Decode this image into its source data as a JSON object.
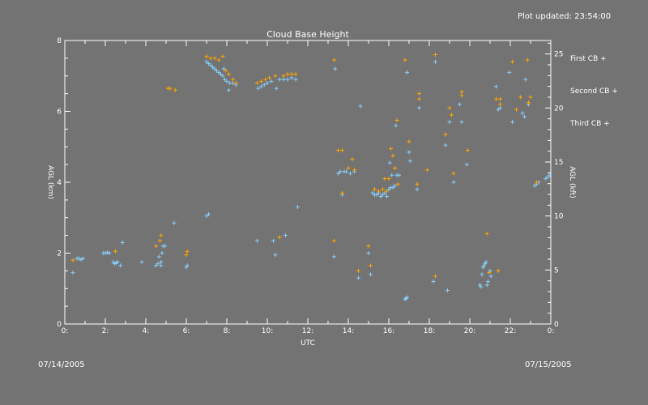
{
  "header": {
    "plot_updated": "Plot updated: 23:54:00"
  },
  "footer": {
    "date_left": "07/14/2005",
    "date_right": "07/15/2005"
  },
  "chart_data": {
    "type": "scatter",
    "title": "Cloud Base Height",
    "xlabel": "UTC",
    "ylabel": "AGL (km)",
    "ylabel_right": "AGL (kft)",
    "xlim": [
      0,
      24
    ],
    "ylim": [
      0,
      8
    ],
    "ylim_right": [
      0,
      26.25
    ],
    "x_ticks": [
      "0:",
      "2:",
      "4:",
      "6:",
      "8:",
      "10:",
      "12:",
      "14:",
      "16:",
      "18:",
      "20:",
      "22:",
      "0:"
    ],
    "y_ticks": [
      "0",
      "2",
      "4",
      "6",
      "8"
    ],
    "y_ticks_right": [
      "0",
      "5",
      "10",
      "15",
      "20",
      "25"
    ],
    "legend_placement": "right",
    "grid": false,
    "series": [
      {
        "name": "First CB +",
        "color": "#87cefa",
        "points": [
          [
            0.4,
            1.45
          ],
          [
            0.6,
            1.85
          ],
          [
            0.7,
            1.85
          ],
          [
            0.8,
            1.82
          ],
          [
            0.9,
            1.85
          ],
          [
            1.9,
            2.0
          ],
          [
            2.0,
            2.0
          ],
          [
            2.1,
            2.02
          ],
          [
            2.2,
            2.0
          ],
          [
            2.4,
            1.75
          ],
          [
            2.45,
            1.7
          ],
          [
            2.55,
            1.72
          ],
          [
            2.6,
            1.75
          ],
          [
            2.75,
            1.65
          ],
          [
            2.85,
            2.3
          ],
          [
            3.8,
            1.75
          ],
          [
            4.5,
            1.65
          ],
          [
            4.6,
            1.7
          ],
          [
            4.65,
            1.9
          ],
          [
            4.75,
            1.75
          ],
          [
            4.8,
            2.0
          ],
          [
            4.85,
            2.2
          ],
          [
            4.95,
            2.2
          ],
          [
            4.75,
            1.65
          ],
          [
            5.4,
            2.85
          ],
          [
            6.0,
            1.6
          ],
          [
            6.05,
            1.65
          ],
          [
            7.0,
            3.05
          ],
          [
            7.1,
            3.1
          ],
          [
            7.0,
            7.4
          ],
          [
            7.1,
            7.35
          ],
          [
            7.2,
            7.3
          ],
          [
            7.3,
            7.25
          ],
          [
            7.4,
            7.2
          ],
          [
            7.5,
            7.15
          ],
          [
            7.6,
            7.1
          ],
          [
            7.7,
            7.05
          ],
          [
            7.8,
            7.0
          ],
          [
            7.85,
            7.2
          ],
          [
            7.9,
            6.9
          ],
          [
            8.0,
            6.85
          ],
          [
            8.1,
            6.6
          ],
          [
            8.15,
            6.8
          ],
          [
            8.3,
            6.8
          ],
          [
            8.45,
            6.75
          ],
          [
            9.5,
            2.35
          ],
          [
            9.55,
            6.65
          ],
          [
            9.7,
            6.7
          ],
          [
            9.85,
            6.75
          ],
          [
            10.0,
            6.8
          ],
          [
            10.2,
            6.85
          ],
          [
            10.3,
            2.35
          ],
          [
            10.4,
            1.95
          ],
          [
            10.45,
            6.65
          ],
          [
            10.6,
            6.9
          ],
          [
            10.8,
            6.9
          ],
          [
            10.9,
            2.5
          ],
          [
            11.0,
            6.9
          ],
          [
            11.2,
            6.95
          ],
          [
            11.4,
            6.9
          ],
          [
            11.5,
            3.3
          ],
          [
            13.3,
            1.9
          ],
          [
            13.35,
            7.2
          ],
          [
            13.5,
            4.25
          ],
          [
            13.6,
            4.3
          ],
          [
            13.7,
            3.65
          ],
          [
            13.8,
            4.3
          ],
          [
            13.9,
            4.3
          ],
          [
            14.1,
            4.25
          ],
          [
            14.3,
            4.3
          ],
          [
            14.5,
            1.3
          ],
          [
            14.6,
            6.15
          ],
          [
            15.0,
            2.0
          ],
          [
            15.1,
            1.4
          ],
          [
            15.2,
            3.7
          ],
          [
            15.3,
            3.65
          ],
          [
            15.4,
            3.65
          ],
          [
            15.5,
            3.7
          ],
          [
            15.6,
            3.6
          ],
          [
            15.7,
            3.65
          ],
          [
            15.8,
            3.7
          ],
          [
            15.9,
            3.6
          ],
          [
            16.0,
            3.8
          ],
          [
            16.1,
            3.85
          ],
          [
            16.2,
            3.85
          ],
          [
            16.3,
            3.9
          ],
          [
            16.05,
            4.55
          ],
          [
            16.15,
            4.2
          ],
          [
            16.4,
            4.2
          ],
          [
            16.5,
            4.2
          ],
          [
            16.35,
            5.6
          ],
          [
            16.8,
            0.7
          ],
          [
            16.85,
            0.72
          ],
          [
            16.9,
            0.75
          ],
          [
            17.0,
            4.85
          ],
          [
            17.05,
            4.6
          ],
          [
            16.9,
            7.1
          ],
          [
            17.4,
            3.8
          ],
          [
            17.5,
            6.1
          ],
          [
            18.2,
            1.2
          ],
          [
            18.3,
            7.4
          ],
          [
            18.8,
            5.05
          ],
          [
            18.9,
            0.95
          ],
          [
            19.0,
            5.7
          ],
          [
            19.2,
            4.0
          ],
          [
            19.5,
            6.2
          ],
          [
            19.6,
            5.7
          ],
          [
            19.85,
            4.5
          ],
          [
            20.5,
            1.1
          ],
          [
            20.55,
            1.05
          ],
          [
            20.6,
            1.4
          ],
          [
            20.65,
            1.6
          ],
          [
            20.7,
            1.65
          ],
          [
            20.75,
            1.7
          ],
          [
            20.8,
            1.75
          ],
          [
            20.85,
            1.1
          ],
          [
            20.9,
            1.2
          ],
          [
            21.0,
            1.5
          ],
          [
            21.05,
            1.35
          ],
          [
            21.3,
            6.7
          ],
          [
            21.4,
            6.05
          ],
          [
            21.5,
            6.1
          ],
          [
            21.95,
            7.1
          ],
          [
            22.1,
            5.7
          ],
          [
            22.6,
            5.95
          ],
          [
            22.7,
            5.85
          ],
          [
            22.75,
            6.9
          ],
          [
            22.9,
            6.2
          ],
          [
            23.2,
            3.9
          ],
          [
            23.3,
            3.95
          ],
          [
            23.4,
            4.0
          ],
          [
            23.75,
            4.1
          ],
          [
            23.85,
            4.15
          ],
          [
            23.95,
            4.2
          ]
        ]
      },
      {
        "name": "Second CB +",
        "color": "#ffa500",
        "points": [
          [
            0.4,
            1.8
          ],
          [
            2.5,
            2.05
          ],
          [
            4.5,
            2.2
          ],
          [
            4.7,
            2.35
          ],
          [
            4.75,
            2.5
          ],
          [
            5.1,
            6.65
          ],
          [
            5.2,
            6.65
          ],
          [
            5.45,
            6.6
          ],
          [
            6.0,
            1.95
          ],
          [
            6.05,
            2.05
          ],
          [
            7.0,
            7.55
          ],
          [
            7.2,
            7.5
          ],
          [
            7.4,
            7.5
          ],
          [
            7.6,
            7.45
          ],
          [
            7.8,
            7.55
          ],
          [
            7.95,
            7.15
          ],
          [
            8.1,
            7.05
          ],
          [
            8.3,
            6.9
          ],
          [
            8.45,
            6.8
          ],
          [
            9.5,
            6.8
          ],
          [
            9.7,
            6.85
          ],
          [
            9.9,
            6.9
          ],
          [
            10.1,
            6.95
          ],
          [
            10.4,
            7.0
          ],
          [
            10.6,
            2.45
          ],
          [
            10.8,
            7.0
          ],
          [
            11.0,
            7.05
          ],
          [
            11.2,
            7.05
          ],
          [
            11.4,
            7.05
          ],
          [
            13.3,
            7.45
          ],
          [
            13.3,
            2.35
          ],
          [
            13.5,
            4.9
          ],
          [
            13.7,
            4.9
          ],
          [
            13.7,
            3.7
          ],
          [
            14.0,
            4.4
          ],
          [
            14.2,
            4.65
          ],
          [
            14.3,
            4.35
          ],
          [
            14.5,
            1.5
          ],
          [
            15.0,
            2.2
          ],
          [
            15.1,
            1.65
          ],
          [
            15.3,
            3.8
          ],
          [
            15.5,
            3.75
          ],
          [
            15.7,
            3.8
          ],
          [
            15.9,
            3.75
          ],
          [
            16.0,
            4.1
          ],
          [
            16.1,
            4.95
          ],
          [
            16.2,
            4.75
          ],
          [
            16.3,
            4.4
          ],
          [
            16.45,
            3.95
          ],
          [
            15.8,
            4.1
          ],
          [
            16.4,
            5.75
          ],
          [
            16.8,
            7.45
          ],
          [
            17.0,
            5.15
          ],
          [
            17.4,
            3.95
          ],
          [
            17.5,
            6.35
          ],
          [
            17.5,
            6.5
          ],
          [
            17.9,
            4.35
          ],
          [
            18.3,
            7.6
          ],
          [
            18.3,
            1.35
          ],
          [
            18.8,
            5.35
          ],
          [
            19.0,
            6.1
          ],
          [
            19.1,
            5.9
          ],
          [
            19.2,
            4.25
          ],
          [
            19.6,
            6.55
          ],
          [
            19.6,
            6.45
          ],
          [
            19.9,
            4.9
          ],
          [
            20.85,
            2.55
          ],
          [
            20.95,
            1.45
          ],
          [
            21.4,
            1.5
          ],
          [
            21.3,
            6.35
          ],
          [
            21.5,
            6.35
          ],
          [
            21.5,
            6.2
          ],
          [
            22.1,
            7.4
          ],
          [
            22.3,
            6.05
          ],
          [
            22.5,
            6.4
          ],
          [
            22.9,
            6.25
          ],
          [
            22.85,
            7.45
          ],
          [
            23.0,
            6.4
          ],
          [
            23.3,
            4.0
          ]
        ]
      },
      {
        "name": "Third CB +",
        "color": "#ff00ff",
        "points": []
      }
    ]
  }
}
